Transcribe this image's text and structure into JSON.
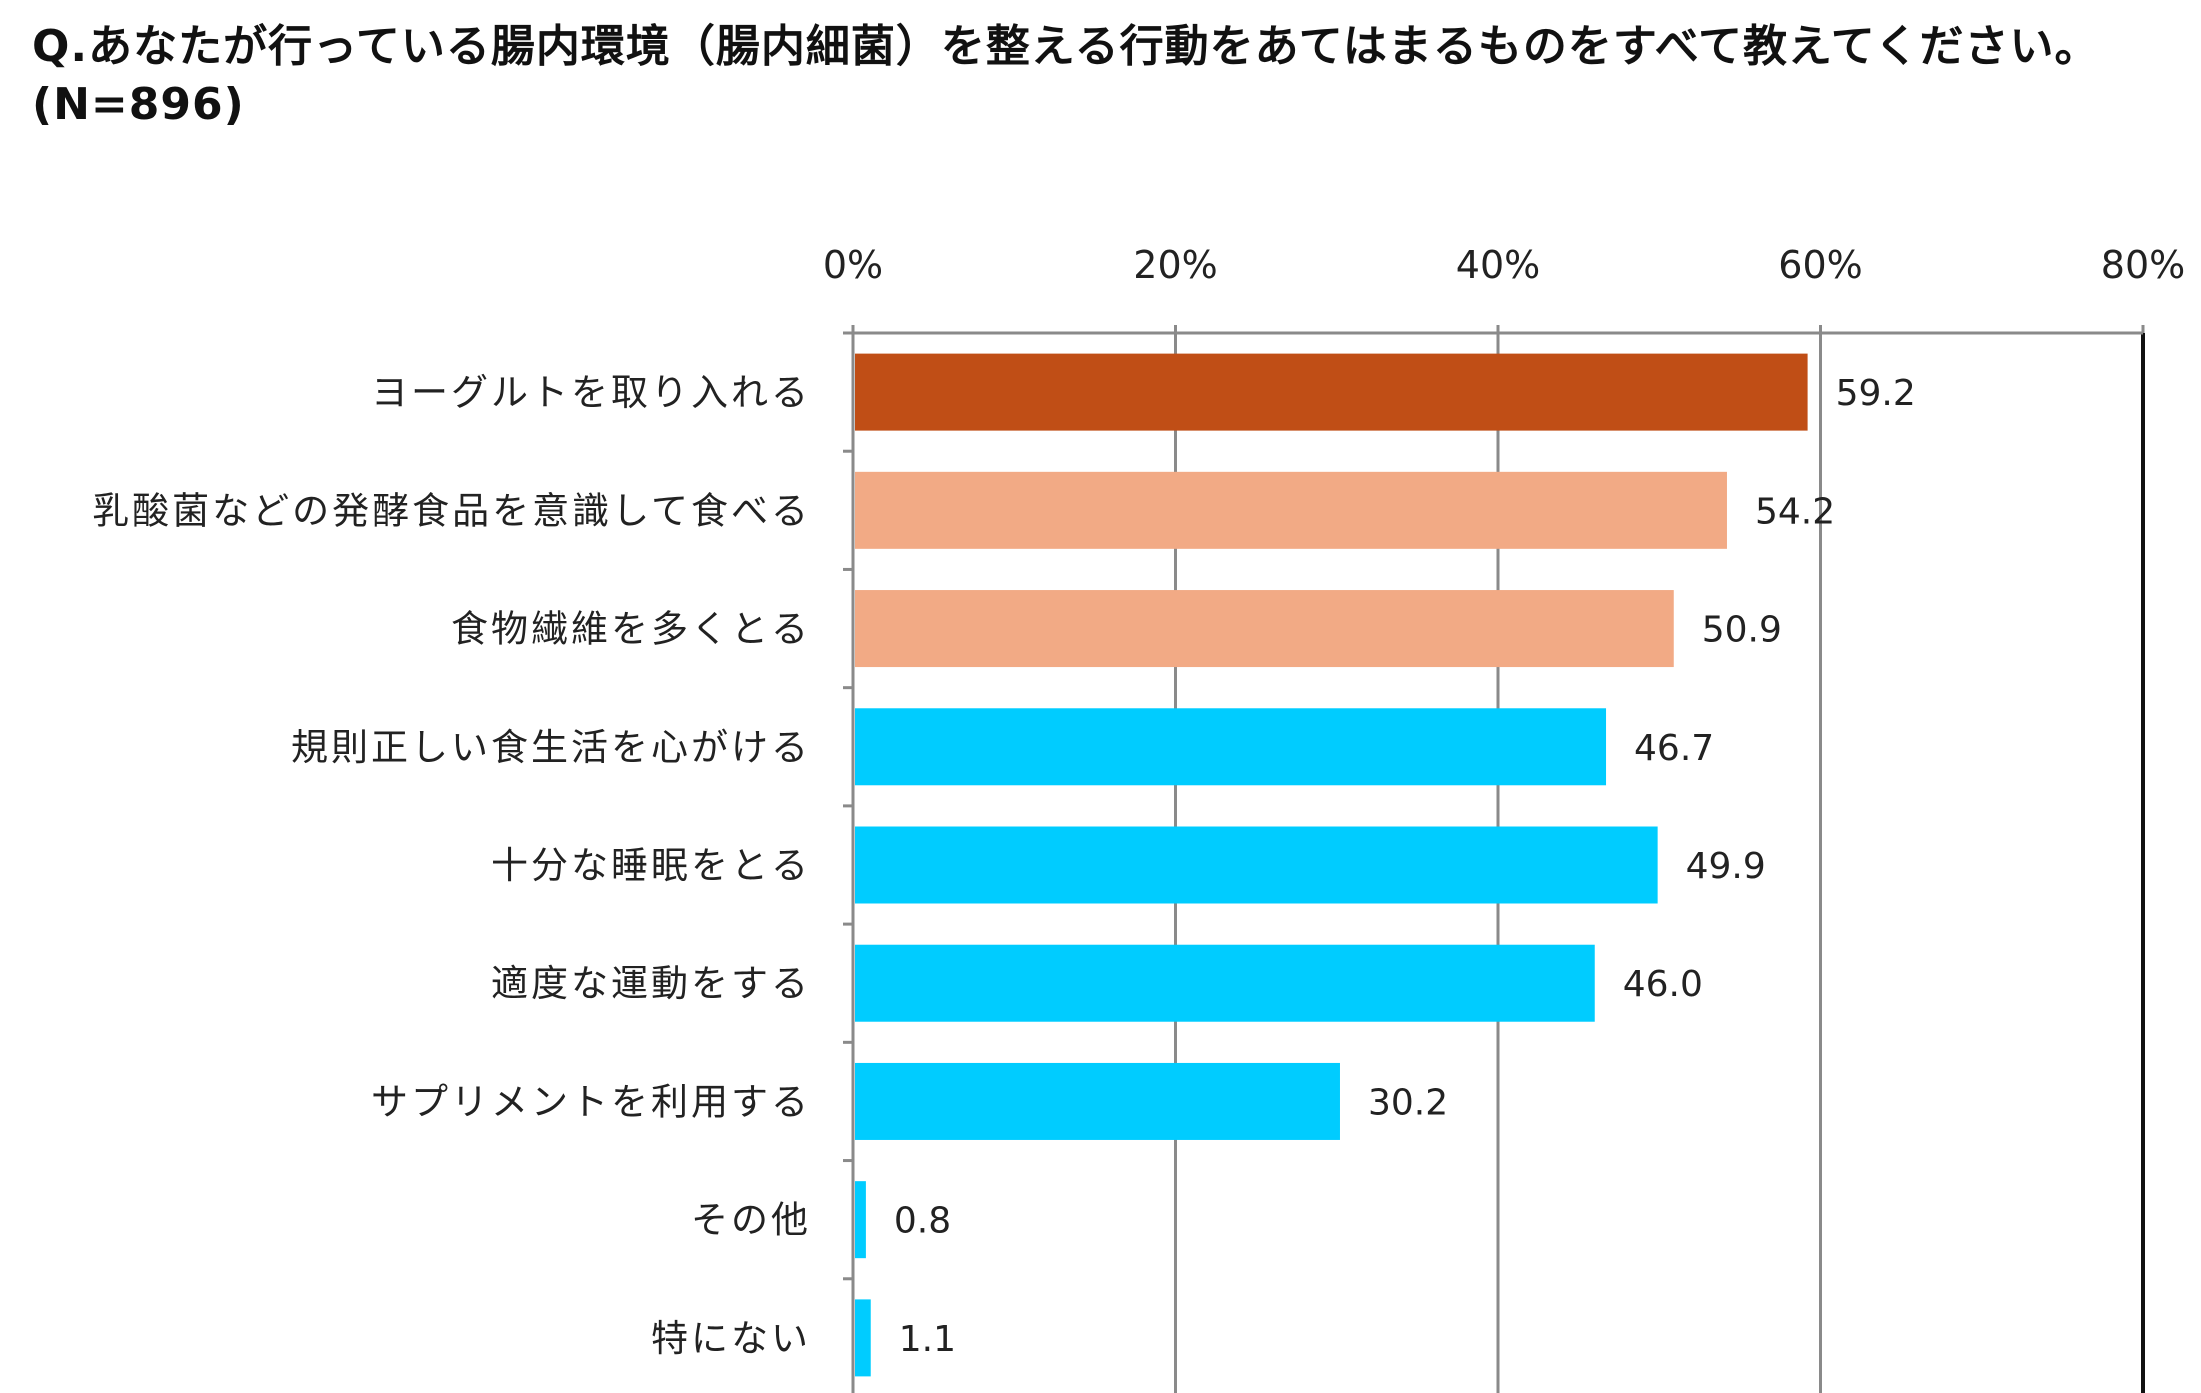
{
  "header": {
    "title_line1": "Q.あなたが行っている腸内環境（腸内細菌）を整える行動をあてはまるものをすべて教えてください。",
    "title_line2": "(N=896)"
  },
  "chart_data": {
    "type": "bar",
    "orientation": "horizontal",
    "title": "Q.あなたが行っている腸内環境（腸内細菌）を整える行動をあてはまるものをすべて教えてください。(N=896)",
    "categories": [
      "ヨーグルトを取り入れる",
      "乳酸菌などの発酵食品を意識して食べる",
      "食物繊維を多くとる",
      "規則正しい食生活を心がける",
      "十分な睡眠をとる",
      "適度な運動をする",
      "サプリメントを利用する",
      "その他",
      "特にない"
    ],
    "values": [
      59.2,
      54.2,
      50.9,
      46.7,
      49.9,
      46.0,
      30.2,
      0.8,
      1.1
    ],
    "value_labels": [
      "59.2",
      "54.2",
      "50.9",
      "46.7",
      "49.9",
      "46.0",
      "30.2",
      "0.8",
      "1.1"
    ],
    "bar_colors": [
      "#C04E16",
      "#F2AA85",
      "#F2AA85",
      "#00CCFF",
      "#00CCFF",
      "#00CCFF",
      "#00CCFF",
      "#00CCFF",
      "#00CCFF"
    ],
    "xlim": [
      0,
      80
    ],
    "xticks": [
      0,
      20,
      40,
      60,
      80
    ],
    "xtick_labels": [
      "0%",
      "20%",
      "40%",
      "60%",
      "80%"
    ],
    "x_axis_position": "top",
    "grid": true,
    "legend": "none"
  }
}
